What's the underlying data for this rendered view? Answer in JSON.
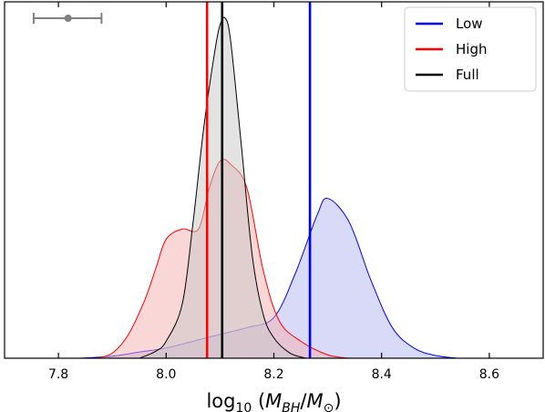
{
  "chart_data": {
    "type": "area",
    "title": "",
    "xlabel": "log10(M_BH/M_sun)",
    "ylabel": "",
    "xlim": [
      7.7,
      8.7
    ],
    "ylim": [
      0,
      1
    ],
    "xticks": [
      "7.8",
      "8.0",
      "8.2",
      "8.4",
      "8.6"
    ],
    "grid": false,
    "legend": {
      "position": "top-right"
    },
    "series": [
      {
        "name": "Low",
        "color": "#0000ff",
        "fill": "#b3b3f2",
        "median": 8.267,
        "x": [
          7.84,
          7.9,
          7.95,
          8.0,
          8.05,
          8.1,
          8.15,
          8.2,
          8.24,
          8.28,
          8.3,
          8.34,
          8.38,
          8.42,
          8.46,
          8.5,
          8.54
        ],
        "y": [
          0.0,
          0.006,
          0.018,
          0.03,
          0.05,
          0.07,
          0.09,
          0.12,
          0.25,
          0.42,
          0.47,
          0.4,
          0.23,
          0.09,
          0.03,
          0.008,
          0.0
        ]
      },
      {
        "name": "High",
        "color": "#ff0000",
        "fill": "#f5b0b0",
        "median": 8.076,
        "x": [
          7.87,
          7.9,
          7.93,
          7.96,
          7.98,
          8.0,
          8.03,
          8.06,
          8.08,
          8.1,
          8.12,
          8.15,
          8.18,
          8.21,
          8.25,
          8.3,
          8.34
        ],
        "y": [
          0.0,
          0.015,
          0.07,
          0.17,
          0.26,
          0.35,
          0.38,
          0.38,
          0.5,
          0.58,
          0.57,
          0.5,
          0.26,
          0.11,
          0.05,
          0.01,
          0.0
        ]
      },
      {
        "name": "Full",
        "color": "#000000",
        "fill": "#c8c8c8",
        "median": 8.104,
        "x": [
          7.95,
          7.98,
          8.0,
          8.03,
          8.05,
          8.07,
          8.09,
          8.1,
          8.11,
          8.12,
          8.14,
          8.16,
          8.18,
          8.2,
          8.23,
          8.26
        ],
        "y": [
          0.0,
          0.02,
          0.05,
          0.16,
          0.4,
          0.68,
          0.9,
          0.98,
          1.0,
          0.93,
          0.62,
          0.3,
          0.13,
          0.06,
          0.015,
          0.0
        ]
      }
    ],
    "error_bar": {
      "x": 7.818,
      "xerr_low": 0.064,
      "xerr_high": 0.062,
      "color": "#808080"
    }
  }
}
